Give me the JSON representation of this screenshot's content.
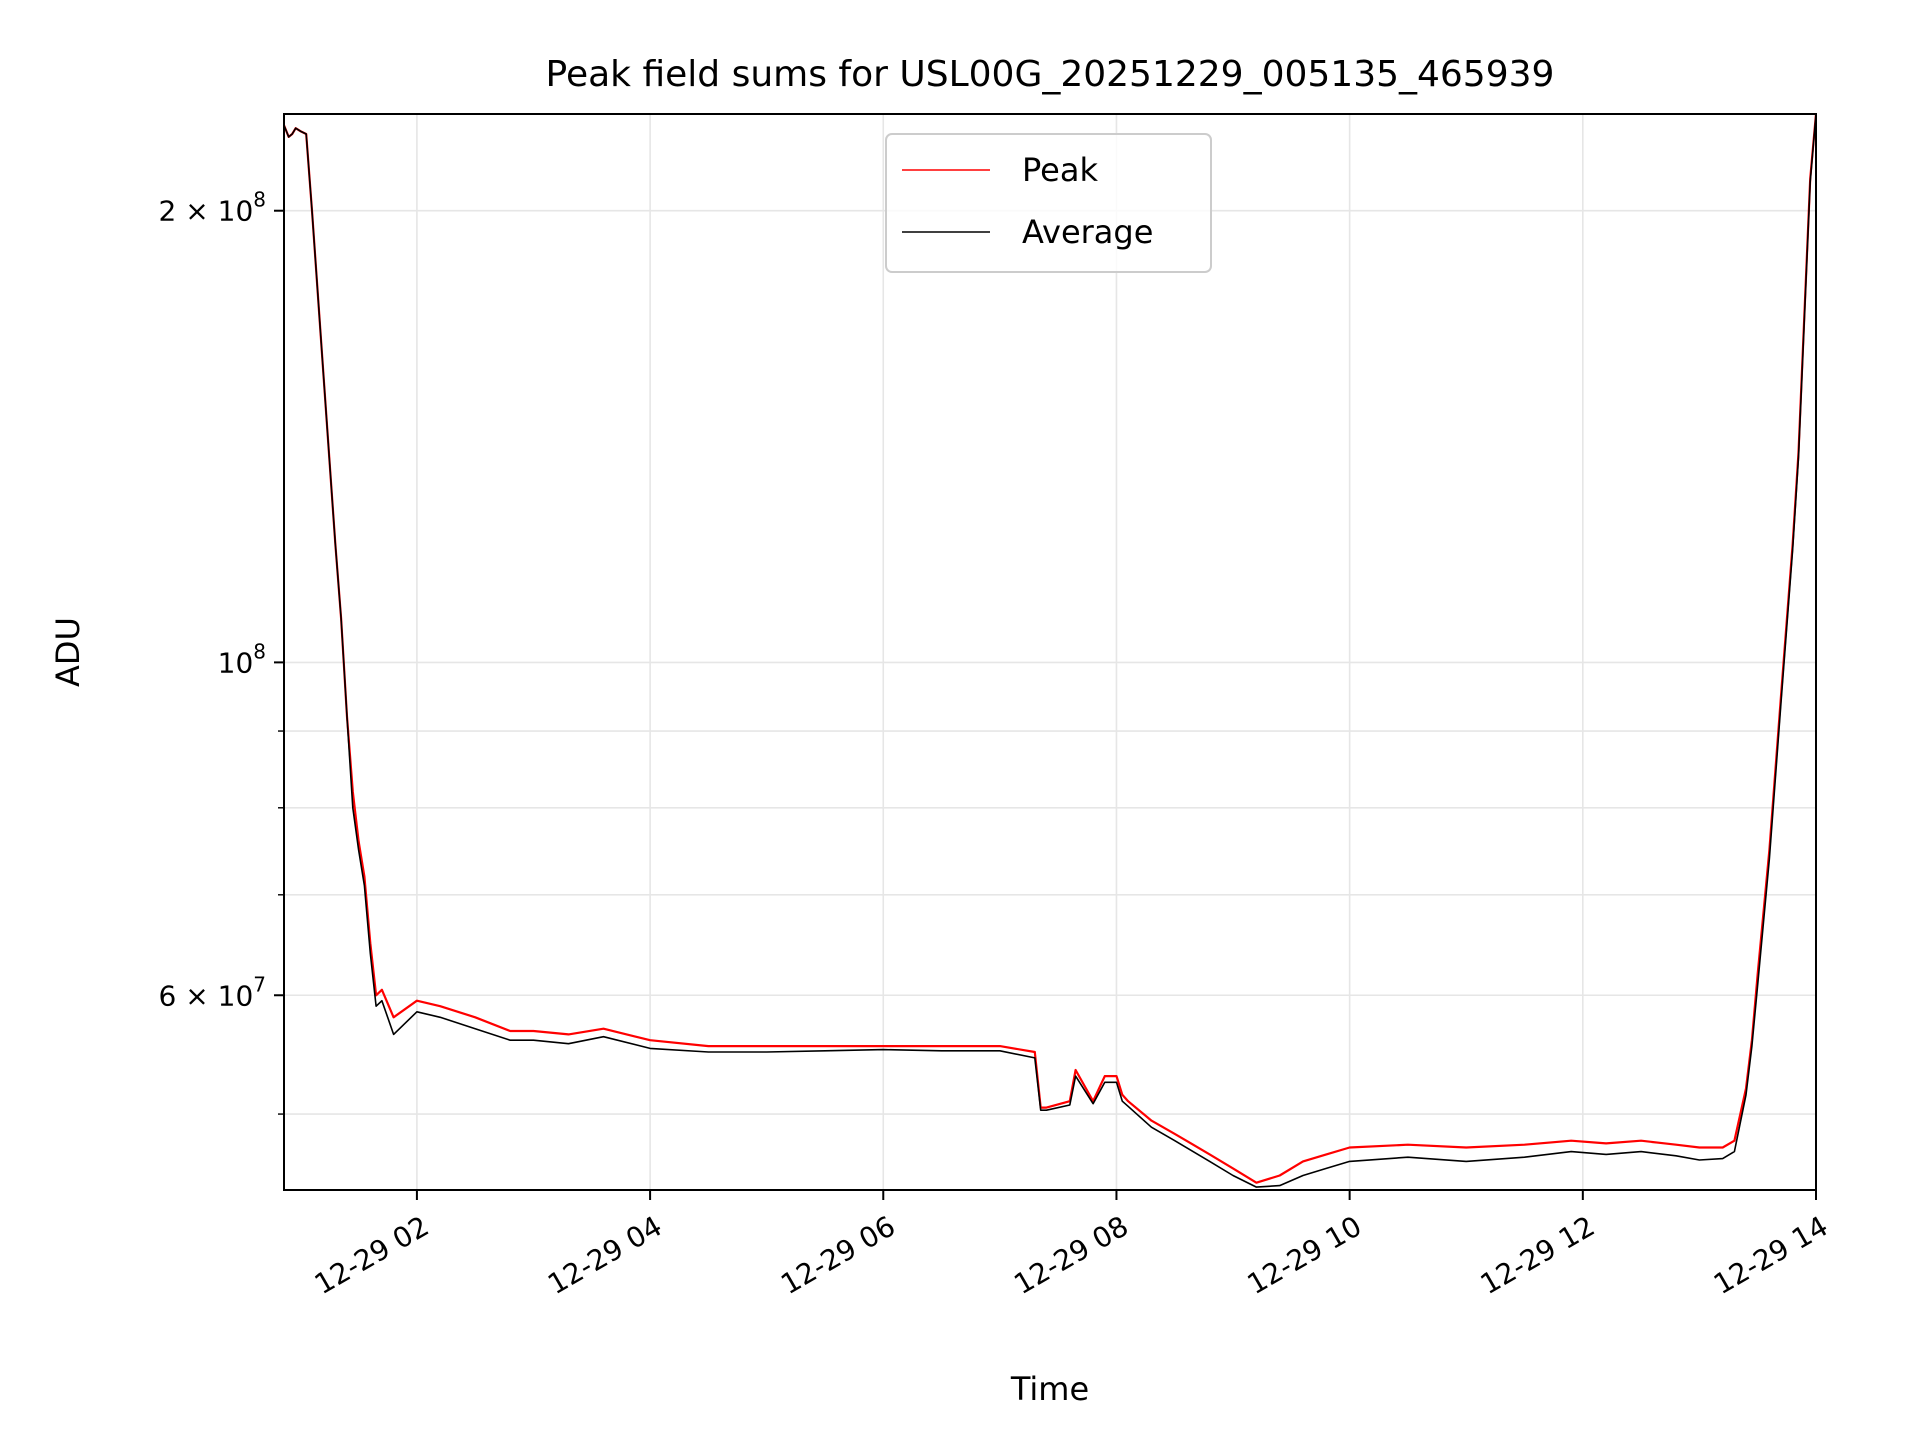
{
  "chart_data": {
    "type": "line",
    "title": "Peak field sums for USL00G_20251229_005135_465939",
    "xlabel": "Time",
    "ylabel": "ADU",
    "yscale": "log",
    "xlim_hours": [
      0.86,
      14.0
    ],
    "ylim": [
      44500000,
      232000000
    ],
    "grid": true,
    "legend_position": "upper center",
    "x_ticks": [
      {
        "hour": 2,
        "label": "12-29 02"
      },
      {
        "hour": 4,
        "label": "12-29 04"
      },
      {
        "hour": 6,
        "label": "12-29 06"
      },
      {
        "hour": 8,
        "label": "12-29 08"
      },
      {
        "hour": 10,
        "label": "12-29 10"
      },
      {
        "hour": 12,
        "label": "12-29 12"
      },
      {
        "hour": 14,
        "label": "12-29 14"
      }
    ],
    "y_major_ticks": [
      {
        "value": 200000000,
        "mantissa": "2 × 10",
        "exp": "8"
      },
      {
        "value": 100000000,
        "mantissa": "10",
        "exp": "8"
      },
      {
        "value": 60000000,
        "mantissa": "6 × 10",
        "exp": "7"
      }
    ],
    "y_minor_ticks": [
      50000000,
      70000000,
      80000000,
      90000000
    ],
    "series": [
      {
        "name": "Peak",
        "color": "#ff0000",
        "x": [
          0.86,
          0.9,
          0.93,
          0.96,
          1.0,
          1.05,
          1.1,
          1.2,
          1.3,
          1.35,
          1.4,
          1.45,
          1.5,
          1.55,
          1.6,
          1.65,
          1.7,
          1.8,
          2.0,
          2.2,
          2.5,
          2.8,
          3.0,
          3.3,
          3.6,
          4.0,
          4.5,
          5.0,
          5.5,
          6.0,
          6.5,
          7.0,
          7.3,
          7.35,
          7.4,
          7.6,
          7.65,
          7.8,
          7.9,
          8.0,
          8.05,
          8.1,
          8.3,
          8.5,
          8.8,
          9.0,
          9.2,
          9.4,
          9.6,
          9.8,
          10.0,
          10.5,
          11.0,
          11.5,
          11.9,
          12.2,
          12.5,
          12.8,
          13.0,
          13.2,
          13.3,
          13.4,
          13.45,
          13.5,
          13.6,
          13.7,
          13.8,
          13.85,
          13.9,
          13.95,
          14.0
        ],
        "y": [
          228000000,
          224000000,
          225000000,
          227000000,
          226000000,
          225000000,
          200000000,
          155000000,
          120000000,
          107000000,
          92000000,
          82000000,
          76000000,
          72000000,
          65000000,
          60000000,
          60500000,
          58000000,
          59500000,
          59000000,
          58000000,
          56800000,
          56800000,
          56500000,
          57000000,
          56000000,
          55500000,
          55500000,
          55500000,
          55500000,
          55500000,
          55500000,
          55000000,
          50500000,
          50500000,
          51000000,
          53500000,
          51000000,
          53000000,
          53000000,
          51500000,
          51000000,
          49500000,
          48500000,
          47000000,
          46000000,
          45000000,
          45500000,
          46500000,
          47000000,
          47500000,
          47700000,
          47500000,
          47700000,
          48000000,
          47800000,
          48000000,
          47700000,
          47500000,
          47500000,
          48000000,
          52000000,
          56000000,
          62000000,
          75000000,
          95000000,
          120000000,
          138000000,
          170000000,
          210000000,
          232000000
        ]
      },
      {
        "name": "Average",
        "color": "#000000",
        "x": [
          0.86,
          0.9,
          0.93,
          0.96,
          1.0,
          1.05,
          1.1,
          1.2,
          1.3,
          1.35,
          1.4,
          1.45,
          1.5,
          1.55,
          1.6,
          1.65,
          1.7,
          1.8,
          2.0,
          2.2,
          2.5,
          2.8,
          3.0,
          3.3,
          3.6,
          4.0,
          4.5,
          5.0,
          5.5,
          6.0,
          6.5,
          7.0,
          7.3,
          7.35,
          7.4,
          7.6,
          7.65,
          7.8,
          7.9,
          8.0,
          8.05,
          8.1,
          8.3,
          8.5,
          8.8,
          9.0,
          9.2,
          9.4,
          9.6,
          9.8,
          10.0,
          10.5,
          11.0,
          11.5,
          11.9,
          12.2,
          12.5,
          12.8,
          13.0,
          13.2,
          13.3,
          13.4,
          13.45,
          13.5,
          13.6,
          13.7,
          13.8,
          13.85,
          13.9,
          13.95,
          14.0
        ],
        "y": [
          228000000,
          224000000,
          225000000,
          227000000,
          226000000,
          225000000,
          200000000,
          155000000,
          120000000,
          107000000,
          92000000,
          80000000,
          75000000,
          71000000,
          64000000,
          59000000,
          59500000,
          56500000,
          58500000,
          58000000,
          57000000,
          56000000,
          56000000,
          55700000,
          56300000,
          55300000,
          55000000,
          55000000,
          55100000,
          55200000,
          55100000,
          55100000,
          54500000,
          50300000,
          50300000,
          50700000,
          53000000,
          50800000,
          52500000,
          52500000,
          51000000,
          50600000,
          49000000,
          48000000,
          46500000,
          45500000,
          44700000,
          44800000,
          45500000,
          46000000,
          46500000,
          46800000,
          46500000,
          46800000,
          47200000,
          47000000,
          47200000,
          46900000,
          46600000,
          46700000,
          47200000,
          51500000,
          55500000,
          61000000,
          74000000,
          94000000,
          119000000,
          137000000,
          169000000,
          209000000,
          232000000
        ]
      }
    ]
  }
}
